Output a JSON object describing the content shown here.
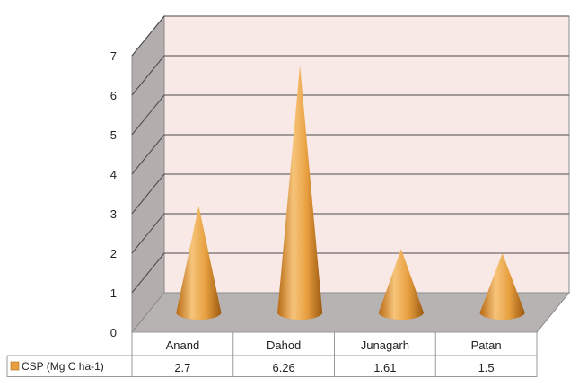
{
  "chart_data": {
    "type": "bar",
    "style": "3d-cone",
    "categories": [
      "Anand",
      "Dahod",
      "Junagarh",
      "Patan"
    ],
    "series": [
      {
        "name": "CSP (Mg C ha-1)",
        "values": [
          2.7,
          6.26,
          1.61,
          1.5
        ]
      }
    ],
    "ylim": [
      0,
      7
    ],
    "yticks": [
      0,
      1,
      2,
      3,
      4,
      5,
      6,
      7
    ],
    "grid": true,
    "data_table": true,
    "colors": {
      "series": "#e8a040",
      "series_dark": "#b86a14",
      "series_light": "#f6c47a",
      "back_wall": "#f9e9e6",
      "side_wall": "#b3adad",
      "floor": "#b8b3b3",
      "grid": "#4a4a4a"
    }
  }
}
